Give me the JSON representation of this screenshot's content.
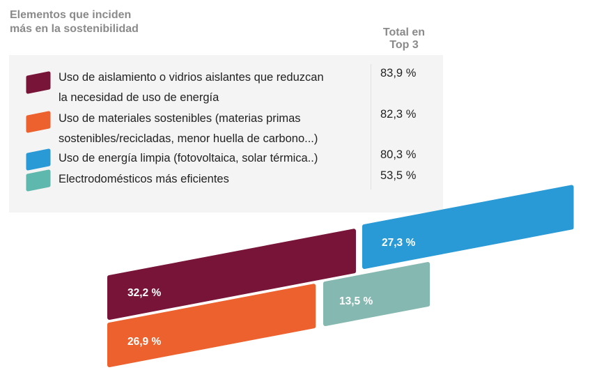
{
  "chart_data": {
    "type": "bar",
    "title": "Elementos que inciden más en la sostenibilidad",
    "title_lines": [
      "Elementos que inciden",
      "más en la sostenibilidad"
    ],
    "column_header_lines": [
      "Total en",
      "Top 3"
    ],
    "series": [
      {
        "name": "Uso de aislamiento o vidrios aislantes que reduzcan la necesidad de uso de energía",
        "lines": [
          "Uso de aislamiento o vidrios aislantes que reduzcan",
          "la necesidad de uso de energía"
        ],
        "total_top3": "83,9 %",
        "value": 32.2,
        "label": "32,2 %",
        "color": "#781437"
      },
      {
        "name": "Uso de materiales sostenibles (materias primas sostenibles/recicladas, menor huella de carbono...)",
        "lines": [
          "Uso de materiales sostenibles (materias primas",
          "sostenibles/recicladas, menor huella de carbono...)"
        ],
        "total_top3": "82,3 %",
        "value": 26.9,
        "label": "26,9 %",
        "color": "#ec612e"
      },
      {
        "name": "Uso de energía limpia (fotovoltaica, solar térmica..)",
        "lines": [
          "Uso de energía limpia (fotovoltaica, solar térmica..)"
        ],
        "total_top3": "80,3 %",
        "value": 27.3,
        "label": "27,3 %",
        "color": "#2a9ad6"
      },
      {
        "name": "Electrodomésticos más eficientes",
        "lines": [
          "Electrodomésticos más eficientes"
        ],
        "total_top3": "53,5 %",
        "value": 13.5,
        "label": "13,5 %",
        "color": "#85b8b0"
      }
    ]
  }
}
